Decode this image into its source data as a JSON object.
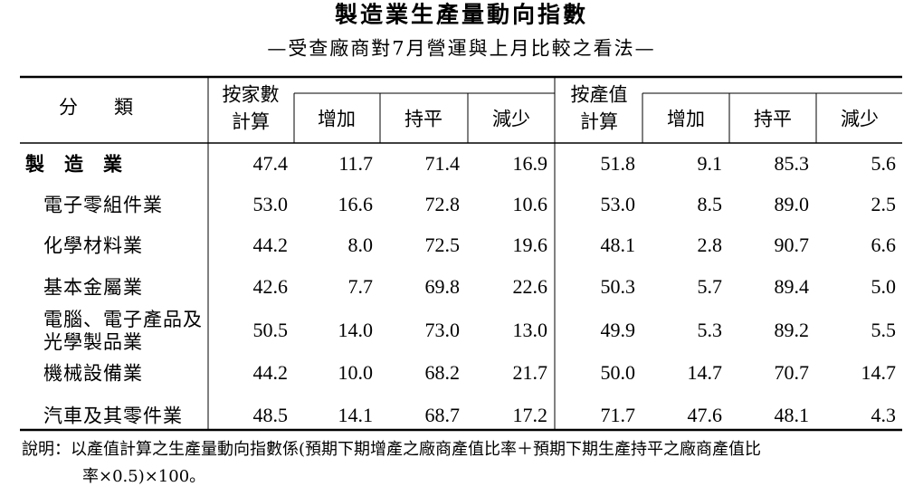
{
  "header": {
    "title": "製造業生產量動向指數",
    "subtitle": "—受查廠商對7月營運與上月比較之看法—"
  },
  "table": {
    "category_header": "分類",
    "groups": [
      {
        "label": [
          "按家數",
          "計算"
        ],
        "sub": [
          "增加",
          "持平",
          "減少"
        ]
      },
      {
        "label": [
          "按產值",
          "計算"
        ],
        "sub": [
          "增加",
          "持平",
          "減少"
        ]
      }
    ],
    "rows": [
      {
        "name": [
          "製造業"
        ],
        "values": [
          "47.4",
          "11.7",
          "71.4",
          "16.9",
          "51.8",
          "9.1",
          "85.3",
          "5.6"
        ]
      },
      {
        "name": [
          "電子零組件業"
        ],
        "values": [
          "53.0",
          "16.6",
          "72.8",
          "10.6",
          "53.0",
          "8.5",
          "89.0",
          "2.5"
        ]
      },
      {
        "name": [
          "化學材料業"
        ],
        "values": [
          "44.2",
          "8.0",
          "72.5",
          "19.6",
          "48.1",
          "2.8",
          "90.7",
          "6.6"
        ]
      },
      {
        "name": [
          "基本金屬業"
        ],
        "values": [
          "42.6",
          "7.7",
          "69.8",
          "22.6",
          "50.3",
          "5.7",
          "89.4",
          "5.0"
        ]
      },
      {
        "name": [
          "電腦、電子產品及",
          "光學製品業"
        ],
        "values": [
          "50.5",
          "14.0",
          "73.0",
          "13.0",
          "49.9",
          "5.3",
          "89.2",
          "5.5"
        ]
      },
      {
        "name": [
          "機械設備業"
        ],
        "values": [
          "44.2",
          "10.0",
          "68.2",
          "21.7",
          "50.0",
          "14.7",
          "70.7",
          "14.7"
        ]
      },
      {
        "name": [
          "汽車及其零件業"
        ],
        "values": [
          "48.5",
          "14.1",
          "68.7",
          "17.2",
          "71.7",
          "47.6",
          "48.1",
          "4.3"
        ]
      }
    ]
  },
  "note": [
    "說明：以產值計算之生產量動向指數係(預期下期增產之廠商產值比率＋預期下期生產持平之廠商產值比",
    "率×0.5)×100。"
  ]
}
